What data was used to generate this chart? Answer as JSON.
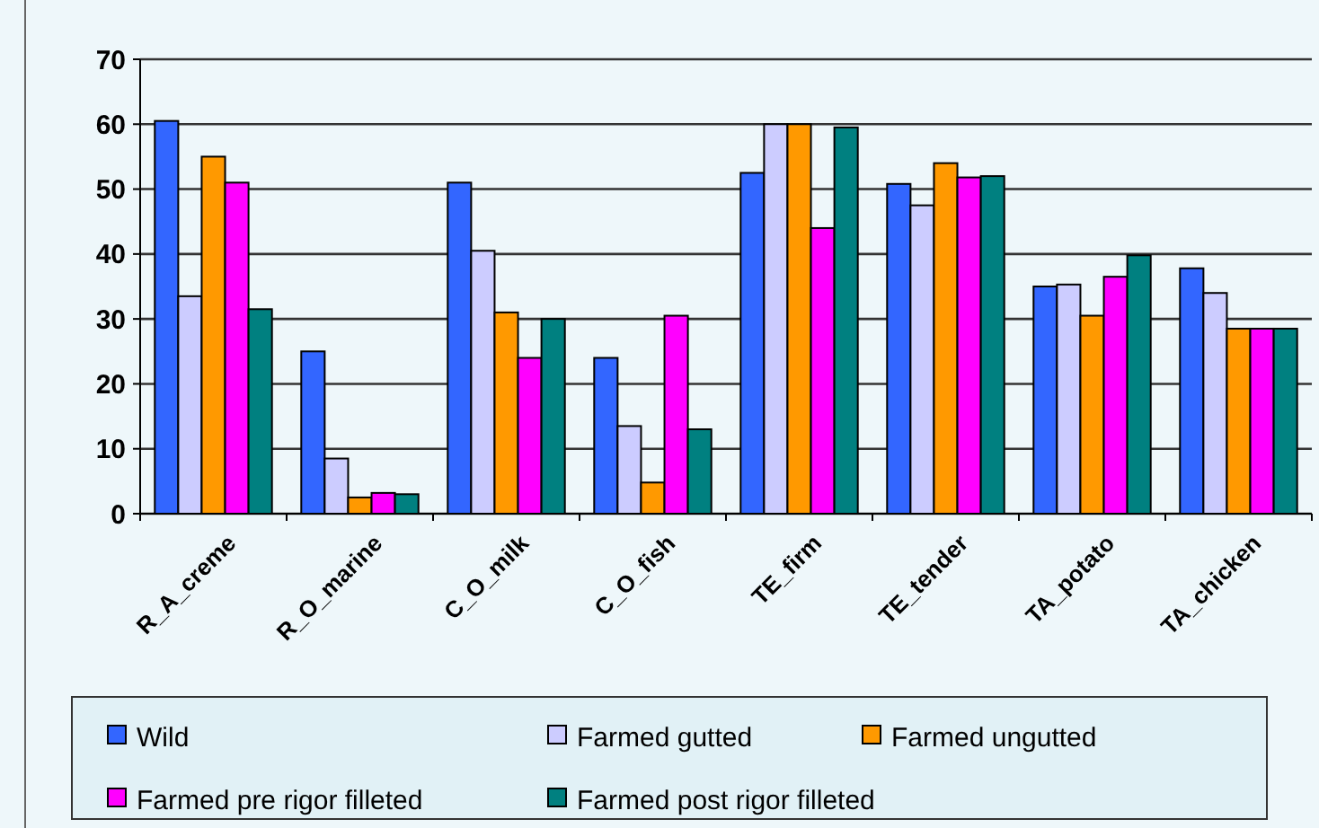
{
  "chart_data": {
    "type": "bar",
    "categories": [
      "R_A_creme",
      "R_O_marine",
      "C_O_milk",
      "C_O_fish",
      "TE_firm",
      "TE_tender",
      "TA_potato",
      "TA_chicken"
    ],
    "series": [
      {
        "name": "Wild",
        "color": "#3366ff",
        "values": [
          60.5,
          25,
          51,
          24,
          52.5,
          50.8,
          35,
          37.8
        ]
      },
      {
        "name": "Farmed gutted",
        "color": "#ccccff",
        "values": [
          33.5,
          8.5,
          40.5,
          13.5,
          60,
          47.5,
          35.3,
          34
        ]
      },
      {
        "name": "Farmed ungutted",
        "color": "#ff9900",
        "values": [
          55,
          2.5,
          31,
          4.8,
          60,
          54,
          30.5,
          28.5
        ]
      },
      {
        "name": "Farmed pre rigor filleted",
        "color": "#ff00ff",
        "values": [
          51,
          3.2,
          24,
          30.5,
          44,
          51.8,
          36.5,
          28.5
        ]
      },
      {
        "name": "Farmed post rigor filleted",
        "color": "#008080",
        "values": [
          31.5,
          3,
          30,
          13,
          59.5,
          52,
          39.8,
          28.5
        ]
      }
    ],
    "ylim": [
      0,
      70
    ],
    "yticks": [
      0,
      10,
      20,
      30,
      40,
      50,
      60,
      70
    ],
    "grid": "y",
    "legend": "bottom"
  }
}
